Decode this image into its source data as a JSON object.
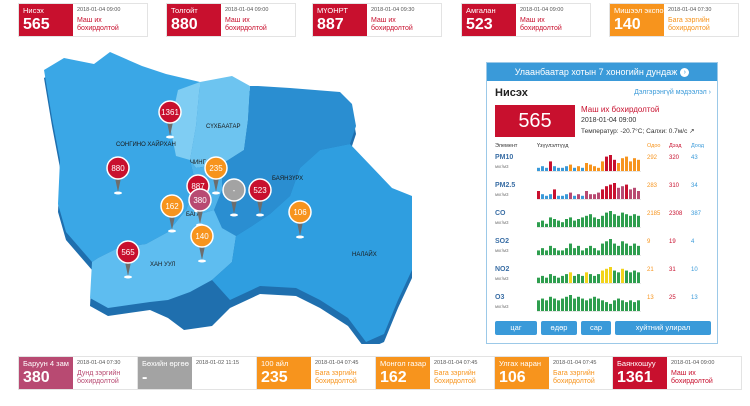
{
  "top_cards": [
    {
      "name": "Нисэх",
      "value": "565",
      "time": "2018-01-04 09:00",
      "status_l1": "Маш их",
      "status_l2": "бохирдолтой",
      "color": "#c8102e",
      "text_color": "#c8102e"
    },
    {
      "name": "Толгойт",
      "value": "880",
      "time": "2018-01-04 09:00",
      "status_l1": "Маш их",
      "status_l2": "бохирдолтой",
      "color": "#c8102e",
      "text_color": "#c8102e"
    },
    {
      "name": "МҮОНРТ",
      "value": "887",
      "time": "2018-01-04 09:30",
      "status_l1": "Маш их",
      "status_l2": "бохирдолтой",
      "color": "#c8102e",
      "text_color": "#c8102e"
    },
    {
      "name": "Амгалан",
      "value": "523",
      "time": "2018-01-04 09:00",
      "status_l1": "Маш их",
      "status_l2": "бохирдолтой",
      "color": "#c8102e",
      "text_color": "#c8102e"
    },
    {
      "name": "Мишээл экспо",
      "value": "140",
      "time": "2018-01-04 07:30",
      "status_l1": "Бага зэргийн",
      "status_l2": "бохирдолтой",
      "color": "#f7941d",
      "text_color": "#f7941d"
    }
  ],
  "bottom_cards": [
    {
      "name": "Баруун 4 зам",
      "value": "380",
      "time": "2018-01-04 07:30",
      "status_l1": "Дунд зэргийн",
      "status_l2": "бохирдолтой",
      "color": "#b84a72",
      "text_color": "#b84a72"
    },
    {
      "name": "Бөхийн өргөө",
      "value": "-",
      "time": "2018-01-02 11:15",
      "status_l1": "",
      "status_l2": "",
      "color": "#a3a3a3",
      "text_color": "#a3a3a3"
    },
    {
      "name": "100 айл",
      "value": "235",
      "time": "2018-01-04 07:45",
      "status_l1": "Бага зэргийн",
      "status_l2": "бохирдолтой",
      "color": "#f7941d",
      "text_color": "#f7941d"
    },
    {
      "name": "Монгол газар",
      "value": "162",
      "time": "2018-01-04 07:45",
      "status_l1": "Бага зэргийн",
      "status_l2": "бохирдолтой",
      "color": "#f7941d",
      "text_color": "#f7941d"
    },
    {
      "name": "Улгах наран",
      "value": "106",
      "time": "2018-01-04 07:45",
      "status_l1": "Бага зэргийн",
      "status_l2": "бохирдолтой",
      "color": "#f7941d",
      "text_color": "#f7941d"
    },
    {
      "name": "Баянхошуу",
      "value": "1361",
      "time": "2018-01-04 09:00",
      "status_l1": "Маш их",
      "status_l2": "бохирдолтой",
      "color": "#c8102e",
      "text_color": "#c8102e"
    }
  ],
  "map": {
    "districts": [
      "СОНГИНО ХАЙРХАН",
      "СҮХБААТАР",
      "ЧИНГ",
      "БАЯНЗҮРХ",
      "БАГА",
      "ХАН УУЛ",
      "НАЛАЙХ"
    ],
    "pins": [
      {
        "value": "1361",
        "color": "#c8102e"
      },
      {
        "value": "880",
        "color": "#c8102e"
      },
      {
        "value": "235",
        "color": "#f7941d"
      },
      {
        "value": "887",
        "color": "#c8102e"
      },
      {
        "value": "380",
        "color": "#b84a72"
      },
      {
        "value": "-",
        "color": "#a3a3a3"
      },
      {
        "value": "523",
        "color": "#c8102e"
      },
      {
        "value": "162",
        "color": "#f7941d"
      },
      {
        "value": "106",
        "color": "#f7941d"
      },
      {
        "value": "140",
        "color": "#f7941d"
      },
      {
        "value": "565",
        "color": "#c8102e"
      }
    ]
  },
  "panel": {
    "header": "Улаанбаатар хотын 7 хоногийн дундаж",
    "station": "Нисэх",
    "detail_link": "Дэлгэрэнгүй мэдээлэл",
    "aqi": "565",
    "status": "Маш их бохирдолтой",
    "time": "2018-01-04 09:00",
    "weather": "Температур: -20.7°C; Салхи: 0.7м/с",
    "col_element": "Элемент",
    "col_indicator": "Үзүүлэлтүүд",
    "col_now": "Одоо",
    "col_max": "Дээд",
    "col_min": "Доод",
    "pollutants": [
      {
        "name": "PM10",
        "unit": "мкг/м3",
        "now": "292",
        "max": "320",
        "min": "43",
        "now_color": "#f7941d",
        "max_color": "#c8102e",
        "min_color": "#3a9ad9",
        "bars": [
          2,
          3,
          2,
          6,
          3,
          2,
          2,
          3,
          4,
          2,
          3,
          2,
          5,
          4,
          3,
          2,
          6,
          9,
          10,
          7,
          5,
          8,
          9,
          6,
          8,
          7
        ],
        "colors": [
          "#3a9ad9",
          "#3a9ad9",
          "#3a9ad9",
          "#c8102e",
          "#3a9ad9",
          "#3a9ad9",
          "#3a9ad9",
          "#3a9ad9",
          "#f7941d",
          "#3a9ad9",
          "#f7941d",
          "#3a9ad9",
          "#f7941d",
          "#f7941d",
          "#f7941d",
          "#f7941d",
          "#f7941d",
          "#c8102e",
          "#c8102e",
          "#c8102e",
          "#f7941d",
          "#f7941d",
          "#f7941d",
          "#f7941d",
          "#f7941d",
          "#f7941d"
        ]
      },
      {
        "name": "PM2.5",
        "unit": "мкг/м3",
        "now": "283",
        "max": "310",
        "min": "34",
        "now_color": "#f7941d",
        "max_color": "#c8102e",
        "min_color": "#3a9ad9",
        "bars": [
          5,
          3,
          2,
          3,
          6,
          2,
          2,
          3,
          4,
          2,
          3,
          2,
          5,
          3,
          3,
          4,
          6,
          8,
          9,
          10,
          7,
          8,
          9,
          6,
          7,
          5
        ],
        "colors": [
          "#c8102e",
          "#3a9ad9",
          "#3a9ad9",
          "#3a9ad9",
          "#c8102e",
          "#3a9ad9",
          "#3a9ad9",
          "#3a9ad9",
          "#b84a72",
          "#3a9ad9",
          "#b84a72",
          "#3a9ad9",
          "#b84a72",
          "#b84a72",
          "#b84a72",
          "#b84a72",
          "#c8102e",
          "#c8102e",
          "#c8102e",
          "#c8102e",
          "#b84a72",
          "#b84a72",
          "#c8102e",
          "#b84a72",
          "#b84a72",
          "#b84a72"
        ]
      },
      {
        "name": "CO",
        "unit": "мкг/м3",
        "now": "2185",
        "max": "2308",
        "min": "387",
        "now_color": "#f7941d",
        "max_color": "#c8102e",
        "min_color": "#3a9ad9",
        "bars": [
          3,
          4,
          2,
          6,
          5,
          4,
          3,
          5,
          6,
          4,
          5,
          6,
          7,
          8,
          6,
          5,
          7,
          9,
          10,
          8,
          7,
          9,
          8,
          7,
          8,
          7
        ],
        "colors": [
          "#2e9e4e",
          "#2e9e4e",
          "#2e9e4e",
          "#2e9e4e",
          "#2e9e4e",
          "#2e9e4e",
          "#2e9e4e",
          "#2e9e4e",
          "#2e9e4e",
          "#2e9e4e",
          "#2e9e4e",
          "#2e9e4e",
          "#2e9e4e",
          "#2e9e4e",
          "#2e9e4e",
          "#2e9e4e",
          "#2e9e4e",
          "#2e9e4e",
          "#2e9e4e",
          "#2e9e4e",
          "#2e9e4e",
          "#2e9e4e",
          "#2e9e4e",
          "#2e9e4e",
          "#2e9e4e",
          "#2e9e4e"
        ]
      },
      {
        "name": "SO2",
        "unit": "мкг/м3",
        "now": "9",
        "max": "19",
        "min": "4",
        "now_color": "#f7941d",
        "max_color": "#c8102e",
        "min_color": "#3a9ad9",
        "bars": [
          2,
          3,
          2,
          4,
          3,
          2,
          2,
          3,
          5,
          3,
          4,
          2,
          3,
          4,
          3,
          2,
          5,
          6,
          7,
          5,
          4,
          6,
          5,
          4,
          5,
          4
        ],
        "colors": [
          "#2e9e4e",
          "#2e9e4e",
          "#2e9e4e",
          "#2e9e4e",
          "#2e9e4e",
          "#2e9e4e",
          "#2e9e4e",
          "#2e9e4e",
          "#2e9e4e",
          "#2e9e4e",
          "#2e9e4e",
          "#2e9e4e",
          "#2e9e4e",
          "#2e9e4e",
          "#2e9e4e",
          "#2e9e4e",
          "#2e9e4e",
          "#2e9e4e",
          "#2e9e4e",
          "#2e9e4e",
          "#2e9e4e",
          "#2e9e4e",
          "#2e9e4e",
          "#2e9e4e",
          "#2e9e4e",
          "#2e9e4e"
        ]
      },
      {
        "name": "NO2",
        "unit": "мкг/м3",
        "now": "21",
        "max": "31",
        "min": "10",
        "now_color": "#f7941d",
        "max_color": "#c8102e",
        "min_color": "#3a9ad9",
        "bars": [
          3,
          4,
          3,
          5,
          4,
          3,
          4,
          5,
          6,
          4,
          5,
          4,
          6,
          5,
          4,
          5,
          7,
          8,
          9,
          7,
          6,
          8,
          7,
          6,
          7,
          6
        ],
        "colors": [
          "#2e9e4e",
          "#2e9e4e",
          "#2e9e4e",
          "#2e9e4e",
          "#2e9e4e",
          "#2e9e4e",
          "#2e9e4e",
          "#2e9e4e",
          "#f2d31a",
          "#2e9e4e",
          "#2e9e4e",
          "#2e9e4e",
          "#f2d31a",
          "#2e9e4e",
          "#2e9e4e",
          "#2e9e4e",
          "#f2d31a",
          "#f2d31a",
          "#f2d31a",
          "#2e9e4e",
          "#2e9e4e",
          "#f2d31a",
          "#2e9e4e",
          "#2e9e4e",
          "#2e9e4e",
          "#2e9e4e"
        ]
      },
      {
        "name": "O3",
        "unit": "мкг/м3",
        "now": "13",
        "max": "25",
        "min": "13",
        "now_color": "#f7941d",
        "max_color": "#c8102e",
        "min_color": "#3a9ad9",
        "bars": [
          6,
          7,
          6,
          8,
          7,
          6,
          7,
          8,
          9,
          7,
          8,
          7,
          6,
          7,
          8,
          7,
          6,
          5,
          4,
          6,
          7,
          6,
          5,
          6,
          5,
          6
        ],
        "colors": [
          "#2e9e4e",
          "#2e9e4e",
          "#2e9e4e",
          "#2e9e4e",
          "#2e9e4e",
          "#2e9e4e",
          "#2e9e4e",
          "#2e9e4e",
          "#2e9e4e",
          "#2e9e4e",
          "#2e9e4e",
          "#2e9e4e",
          "#2e9e4e",
          "#2e9e4e",
          "#2e9e4e",
          "#2e9e4e",
          "#2e9e4e",
          "#2e9e4e",
          "#2e9e4e",
          "#2e9e4e",
          "#2e9e4e",
          "#2e9e4e",
          "#2e9e4e",
          "#2e9e4e",
          "#2e9e4e",
          "#2e9e4e"
        ]
      }
    ],
    "tabs": [
      "цаг",
      "өдөр",
      "сар",
      "хуйтний улирал"
    ]
  },
  "colors": {
    "accent": "#3a9ad9",
    "severe": "#c8102e",
    "moderate": "#f7941d",
    "high": "#b84a72",
    "nodata": "#a3a3a3"
  }
}
